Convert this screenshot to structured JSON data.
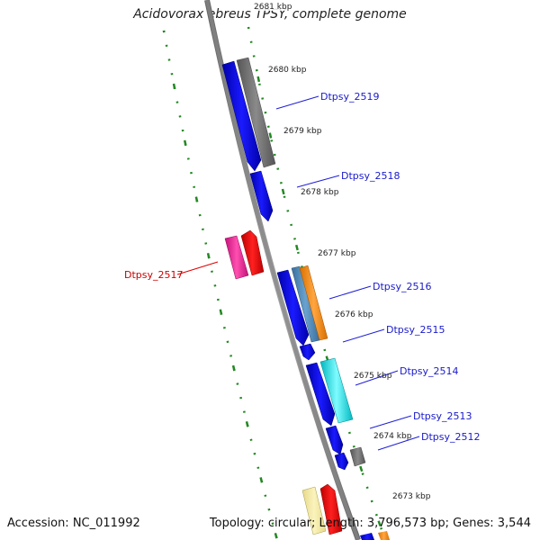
{
  "title": "Acidovorax ebreus TPSY, complete genome",
  "footer": {
    "accession": "Accession: NC_011992",
    "topology": "Topology: circular; Length: 3,796,573 bp; Genes: 3,544"
  },
  "ticks": [
    "2681 kbp",
    "2680 kbp",
    "2679 kbp",
    "2678 kbp",
    "2677 kbp",
    "2676 kbp",
    "2675 kbp",
    "2674 kbp",
    "2673 kbp"
  ],
  "genes": [
    {
      "label": "Dtpsy_2519",
      "color": "#0000cc"
    },
    {
      "label": "Dtpsy_2518",
      "color": "#0000cc"
    },
    {
      "label": "Dtpsy_2517",
      "color": "#cc0000"
    },
    {
      "label": "Dtpsy_2516",
      "color": "#0000cc"
    },
    {
      "label": "Dtpsy_2515",
      "color": "#0000cc"
    },
    {
      "label": "Dtpsy_2514",
      "color": "#0000cc"
    },
    {
      "label": "Dtpsy_2513",
      "color": "#0000cc"
    },
    {
      "label": "Dtpsy_2512",
      "color": "#0000cc"
    }
  ],
  "colors": {
    "backbone": "#888888",
    "tick_ring": "#228822",
    "forward_blue": "#0000ee",
    "gray_feature": "#6b6b6b",
    "pink_feature": "#ee2a9a",
    "red_feature": "#ee0000",
    "orange_feature": "#ff8c00",
    "steel_feature": "#4682b4",
    "cyan_feature": "#00e5ee",
    "khaki_feature": "#f0e68c"
  }
}
